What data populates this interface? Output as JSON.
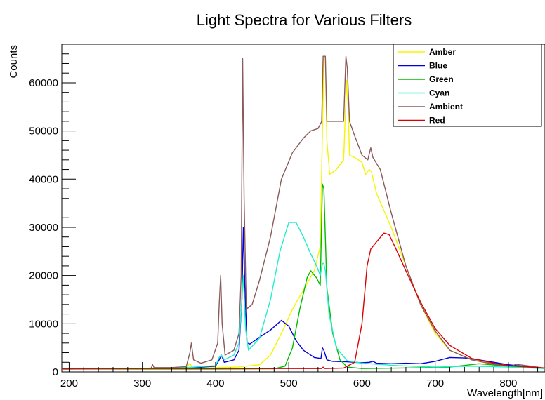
{
  "chart_data": {
    "type": "line",
    "title": "Light Spectra for Various Filters",
    "xlabel": "Wavelength[nm]",
    "ylabel": "Counts",
    "xlim": [
      190,
      850
    ],
    "ylim": [
      0,
      68000
    ],
    "x_ticks": [
      200,
      300,
      400,
      500,
      600,
      700,
      800
    ],
    "y_ticks": [
      0,
      10000,
      20000,
      30000,
      40000,
      50000,
      60000
    ],
    "legend_position": "top-right",
    "grid": false,
    "series": [
      {
        "name": "Amber",
        "color": "#f5f500",
        "points": [
          [
            190,
            600
          ],
          [
            300,
            700
          ],
          [
            360,
            900
          ],
          [
            365,
            1800
          ],
          [
            368,
            800
          ],
          [
            400,
            900
          ],
          [
            430,
            1000
          ],
          [
            460,
            1500
          ],
          [
            475,
            3500
          ],
          [
            490,
            8000
          ],
          [
            505,
            13000
          ],
          [
            520,
            17000
          ],
          [
            535,
            21000
          ],
          [
            543,
            26000
          ],
          [
            546,
            50000
          ],
          [
            548,
            65500
          ],
          [
            550,
            65500
          ],
          [
            552,
            48000
          ],
          [
            556,
            41000
          ],
          [
            565,
            42000
          ],
          [
            575,
            44000
          ],
          [
            579,
            60500
          ],
          [
            581,
            55000
          ],
          [
            583,
            45000
          ],
          [
            590,
            44500
          ],
          [
            600,
            43500
          ],
          [
            605,
            41000
          ],
          [
            610,
            42000
          ],
          [
            613,
            41500
          ],
          [
            620,
            37000
          ],
          [
            640,
            30000
          ],
          [
            660,
            22000
          ],
          [
            680,
            14000
          ],
          [
            700,
            8000
          ],
          [
            720,
            4500
          ],
          [
            750,
            2500
          ],
          [
            780,
            1500
          ],
          [
            800,
            1100
          ],
          [
            850,
            700
          ]
        ]
      },
      {
        "name": "Blue",
        "color": "#0000dd",
        "points": [
          [
            190,
            600
          ],
          [
            300,
            700
          ],
          [
            360,
            800
          ],
          [
            400,
            1200
          ],
          [
            405,
            2500
          ],
          [
            408,
            3500
          ],
          [
            412,
            2000
          ],
          [
            425,
            2500
          ],
          [
            432,
            4500
          ],
          [
            436,
            15000
          ],
          [
            438,
            30000
          ],
          [
            440,
            18000
          ],
          [
            443,
            6000
          ],
          [
            447,
            5800
          ],
          [
            460,
            7200
          ],
          [
            475,
            8700
          ],
          [
            490,
            10700
          ],
          [
            500,
            9500
          ],
          [
            510,
            6500
          ],
          [
            520,
            4500
          ],
          [
            535,
            3000
          ],
          [
            544,
            2800
          ],
          [
            546,
            5000
          ],
          [
            548,
            4500
          ],
          [
            552,
            2500
          ],
          [
            560,
            2200
          ],
          [
            580,
            2100
          ],
          [
            600,
            1900
          ],
          [
            610,
            2000
          ],
          [
            615,
            2200
          ],
          [
            620,
            1800
          ],
          [
            640,
            1700
          ],
          [
            660,
            1800
          ],
          [
            680,
            1700
          ],
          [
            700,
            2200
          ],
          [
            720,
            3000
          ],
          [
            740,
            2900
          ],
          [
            760,
            2500
          ],
          [
            800,
            1500
          ],
          [
            850,
            700
          ]
        ]
      },
      {
        "name": "Green",
        "color": "#00bb00",
        "points": [
          [
            190,
            600
          ],
          [
            300,
            600
          ],
          [
            400,
            600
          ],
          [
            480,
            650
          ],
          [
            495,
            1200
          ],
          [
            505,
            5000
          ],
          [
            515,
            13000
          ],
          [
            525,
            19500
          ],
          [
            530,
            21000
          ],
          [
            538,
            19500
          ],
          [
            543,
            18000
          ],
          [
            546,
            39000
          ],
          [
            548,
            38000
          ],
          [
            552,
            17500
          ],
          [
            560,
            8000
          ],
          [
            570,
            2500
          ],
          [
            580,
            1000
          ],
          [
            600,
            700
          ],
          [
            700,
            900
          ],
          [
            720,
            1000
          ],
          [
            760,
            1700
          ],
          [
            800,
            1200
          ],
          [
            850,
            700
          ]
        ]
      },
      {
        "name": "Cyan",
        "color": "#22eecc",
        "points": [
          [
            190,
            600
          ],
          [
            300,
            700
          ],
          [
            360,
            900
          ],
          [
            400,
            1300
          ],
          [
            405,
            3000
          ],
          [
            408,
            3500
          ],
          [
            412,
            2500
          ],
          [
            425,
            3500
          ],
          [
            432,
            6000
          ],
          [
            436,
            15000
          ],
          [
            438,
            20000
          ],
          [
            441,
            9000
          ],
          [
            445,
            4500
          ],
          [
            460,
            7000
          ],
          [
            475,
            15000
          ],
          [
            488,
            25000
          ],
          [
            500,
            31000
          ],
          [
            510,
            31000
          ],
          [
            520,
            28000
          ],
          [
            530,
            24500
          ],
          [
            538,
            22000
          ],
          [
            543,
            20000
          ],
          [
            546,
            22500
          ],
          [
            548,
            22500
          ],
          [
            550,
            21000
          ],
          [
            555,
            12000
          ],
          [
            565,
            5000
          ],
          [
            580,
            2300
          ],
          [
            600,
            1800
          ],
          [
            650,
            1300
          ],
          [
            700,
            1000
          ],
          [
            750,
            1200
          ],
          [
            800,
            1000
          ],
          [
            850,
            700
          ]
        ]
      },
      {
        "name": "Ambient",
        "color": "#8b5a5a",
        "points": [
          [
            190,
            600
          ],
          [
            300,
            700
          ],
          [
            312,
            800
          ],
          [
            314,
            1500
          ],
          [
            316,
            900
          ],
          [
            340,
            900
          ],
          [
            360,
            1100
          ],
          [
            365,
            4000
          ],
          [
            367,
            6000
          ],
          [
            370,
            2500
          ],
          [
            380,
            1800
          ],
          [
            395,
            2500
          ],
          [
            403,
            6000
          ],
          [
            405,
            14000
          ],
          [
            407,
            20000
          ],
          [
            409,
            10000
          ],
          [
            413,
            3500
          ],
          [
            425,
            4500
          ],
          [
            432,
            8000
          ],
          [
            435,
            20000
          ],
          [
            437,
            65000
          ],
          [
            439,
            36000
          ],
          [
            442,
            13000
          ],
          [
            450,
            14000
          ],
          [
            460,
            19000
          ],
          [
            475,
            28000
          ],
          [
            490,
            40000
          ],
          [
            505,
            45500
          ],
          [
            520,
            48500
          ],
          [
            530,
            50000
          ],
          [
            540,
            50500
          ],
          [
            545,
            52000
          ],
          [
            547,
            65500
          ],
          [
            550,
            65500
          ],
          [
            552,
            52000
          ],
          [
            560,
            52000
          ],
          [
            575,
            52000
          ],
          [
            578,
            65500
          ],
          [
            580,
            63000
          ],
          [
            583,
            52000
          ],
          [
            590,
            49000
          ],
          [
            600,
            45000
          ],
          [
            608,
            44000
          ],
          [
            612,
            46500
          ],
          [
            615,
            44500
          ],
          [
            625,
            42000
          ],
          [
            640,
            33000
          ],
          [
            660,
            22000
          ],
          [
            680,
            14000
          ],
          [
            700,
            8500
          ],
          [
            720,
            4500
          ],
          [
            750,
            2500
          ],
          [
            780,
            1600
          ],
          [
            800,
            1300
          ],
          [
            805,
            1200
          ],
          [
            810,
            1600
          ],
          [
            850,
            800
          ]
        ]
      },
      {
        "name": "Red",
        "color": "#dd0000",
        "points": [
          [
            190,
            700
          ],
          [
            300,
            700
          ],
          [
            400,
            700
          ],
          [
            500,
            700
          ],
          [
            545,
            700
          ],
          [
            547,
            1000
          ],
          [
            549,
            700
          ],
          [
            575,
            800
          ],
          [
            590,
            2000
          ],
          [
            600,
            10000
          ],
          [
            607,
            22000
          ],
          [
            612,
            25500
          ],
          [
            620,
            27000
          ],
          [
            630,
            28800
          ],
          [
            637,
            28500
          ],
          [
            645,
            26000
          ],
          [
            660,
            21000
          ],
          [
            680,
            14500
          ],
          [
            700,
            9000
          ],
          [
            720,
            5500
          ],
          [
            750,
            2800
          ],
          [
            780,
            1800
          ],
          [
            800,
            1300
          ],
          [
            850,
            800
          ]
        ]
      }
    ]
  }
}
